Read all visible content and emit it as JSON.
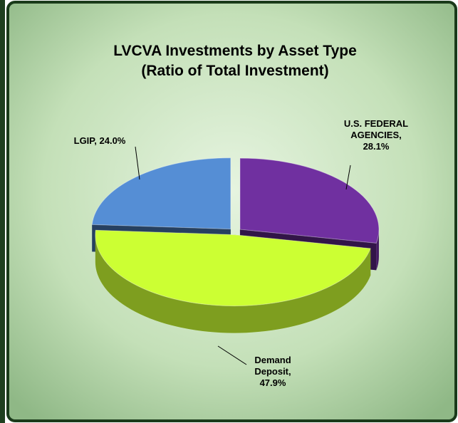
{
  "chart_data": {
    "type": "pie",
    "title": "LVCVA Investments by Asset Type",
    "subtitle": "(Ratio of Total Investment)",
    "categories": [
      "U.S. FEDERAL AGENCIES",
      "Demand Deposit",
      "LGIP"
    ],
    "values": [
      28.1,
      47.9,
      24.0
    ],
    "value_labels": [
      "U.S. FEDERAL AGENCIES, 28.1%",
      "Demand Deposit, 47.9%",
      "LGIP, 24.0%"
    ],
    "colors": [
      "#7030a0",
      "#ccff33",
      "#558ed5"
    ]
  }
}
